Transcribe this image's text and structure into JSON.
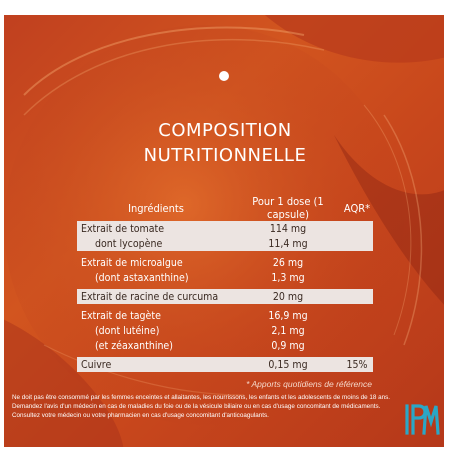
{
  "title": {
    "line1": "COMPOSITION",
    "line2": "NUTRITIONNELLE"
  },
  "table": {
    "headers": {
      "ingredients": "Ingrédients",
      "dose": "Pour 1 dose (1 capsule)",
      "aqr": "AQR*"
    },
    "groups": [
      {
        "rows": [
          {
            "name": "Extrait de tomate",
            "dose": "114 mg",
            "aqr": ""
          },
          {
            "name": "dont lycopène",
            "dose": "11,4 mg",
            "aqr": ""
          }
        ]
      },
      {
        "rows": [
          {
            "name": "Extrait de microalgue",
            "dose": "26 mg",
            "aqr": ""
          },
          {
            "name": "(dont astaxanthine)",
            "dose": "1,3 mg",
            "aqr": ""
          }
        ]
      },
      {
        "rows": [
          {
            "name": "Extrait de racine de curcuma",
            "dose": "20 mg",
            "aqr": ""
          }
        ]
      },
      {
        "rows": [
          {
            "name": "Extrait de tagète",
            "dose": "16,9 mg",
            "aqr": ""
          },
          {
            "name": "(dont lutéine)",
            "dose": "2,1 mg",
            "aqr": ""
          },
          {
            "name": "(et zéaxanthine)",
            "dose": "0,9 mg",
            "aqr": ""
          }
        ]
      },
      {
        "rows": [
          {
            "name": "Cuivre",
            "dose": "0,15 mg",
            "aqr": "15%"
          }
        ]
      }
    ]
  },
  "footnote": "* Apports quotidiens de référence",
  "disclaimer": "Ne doit pas être consommé par les femmes enceintes et allaitantes, les nourrissons, les enfants et les adolescents de moins de 18 ans. Demandez l'avis d'un médecin en cas de maladies du foie ou de la vésicule biliaire ou en cas d'usage concomitant de médicaments. Consultez votre médecin ou votre pharmacien en cas d'usage concomitant d'anticoagulants.",
  "logo": {
    "text": "IPM",
    "color": "#2aa7c6"
  },
  "colors": {
    "background": "#c8471c",
    "row_light": "#ece4e1",
    "text_dark": "#3a2a22"
  }
}
